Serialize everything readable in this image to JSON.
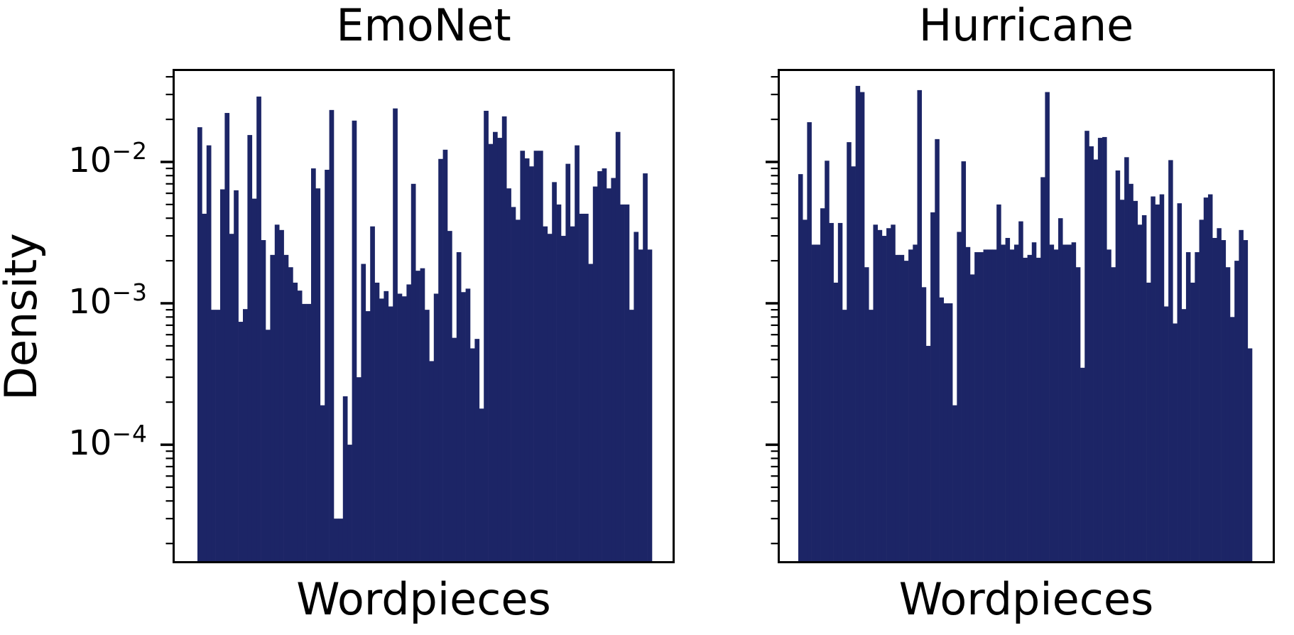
{
  "page": {
    "background": "#ffffff",
    "text_color": "#000000"
  },
  "chart_data": [
    {
      "type": "bar",
      "title": "EmoNet",
      "xlabel": "Wordpieces",
      "ylabel": "Density",
      "yscale": "log",
      "grid": false,
      "legend": "none",
      "bar_color": "#1c2566",
      "axis_color": "#000000",
      "ylim": [
        1.45e-05,
        0.0455
      ],
      "ytick_values": [
        0.01,
        0.001,
        0.0001
      ],
      "ytick_labels": [
        {
          "base": "10",
          "exp": "−2",
          "value": 0.01
        },
        {
          "base": "10",
          "exp": "−3",
          "value": 0.001
        },
        {
          "base": "10",
          "exp": "−4",
          "value": 0.0001
        }
      ],
      "show_ytick_labels": true,
      "values": [
        0.0176,
        0.0043,
        0.0131,
        0.0009,
        0.0009,
        0.0064,
        0.0222,
        0.0031,
        0.0063,
        0.00074,
        0.00091,
        0.0155,
        0.0055,
        0.029,
        0.0028,
        0.00065,
        0.0022,
        0.0036,
        0.0033,
        0.0022,
        0.0018,
        0.0014,
        0.00123,
        0.00099,
        0.00099,
        0.009,
        0.0065,
        0.00019,
        0.0088,
        0.0233,
        3e-05,
        3e-05,
        0.00022,
        0.0001,
        0.0196,
        0.0003,
        0.0019,
        0.00088,
        0.0035,
        0.0014,
        0.00108,
        0.00122,
        0.00095,
        0.0239,
        0.00117,
        0.00112,
        0.00136,
        0.007,
        0.0017,
        0.00177,
        0.0009,
        0.00039,
        0.00117,
        0.0105,
        0.0122,
        0.00325,
        0.00057,
        0.0023,
        0.0012,
        0.00127,
        0.00048,
        0.00056,
        0.00018,
        0.023,
        0.0134,
        0.0163,
        0.0148,
        0.021,
        0.0065,
        0.0048,
        0.0039,
        0.012,
        0.0106,
        0.0093,
        0.012,
        0.012,
        0.0035,
        0.0031,
        0.0072,
        0.005,
        0.003,
        0.0097,
        0.0035,
        0.0131,
        0.0043,
        0.0043,
        0.0019,
        0.0067,
        0.0086,
        0.009,
        0.0065,
        0.0077,
        0.0163,
        0.005,
        0.005,
        0.0009,
        0.0032,
        0.0024,
        0.0083,
        0.0024
      ]
    },
    {
      "type": "bar",
      "title": "Hurricane",
      "xlabel": "Wordpieces",
      "ylabel": "",
      "yscale": "log",
      "grid": false,
      "legend": "none",
      "bar_color": "#1c2566",
      "axis_color": "#000000",
      "ylim": [
        1.45e-05,
        0.0455
      ],
      "ytick_values": [
        0.01,
        0.001,
        0.0001
      ],
      "ytick_labels": [],
      "show_ytick_labels": false,
      "values": [
        0.0082,
        0.0039,
        0.0191,
        0.0026,
        0.0026,
        0.0047,
        0.0102,
        0.0037,
        0.0014,
        0.0037,
        0.0009,
        0.0138,
        0.0093,
        0.0345,
        0.0312,
        0.0018,
        0.0009,
        0.0036,
        0.0033,
        0.003,
        0.0034,
        0.0036,
        0.0022,
        0.0022,
        0.002,
        0.0024,
        0.0026,
        0.0322,
        0.0013,
        0.0005,
        0.0044,
        0.0145,
        0.0011,
        0.001,
        0.001,
        0.00019,
        0.0032,
        0.0101,
        0.0025,
        0.0016,
        0.0023,
        0.0023,
        0.0024,
        0.0024,
        0.0024,
        0.005,
        0.0026,
        0.0029,
        0.0024,
        0.0026,
        0.0038,
        0.0021,
        0.0022,
        0.0027,
        0.0021,
        0.0078,
        0.0312,
        0.0026,
        0.0024,
        0.004,
        0.0026,
        0.0026,
        0.0027,
        0.0018,
        0.00035,
        0.0166,
        0.0129,
        0.0104,
        0.0148,
        0.015,
        0.0024,
        0.0018,
        0.0087,
        0.0054,
        0.0108,
        0.007,
        0.0053,
        0.0036,
        0.0042,
        0.0014,
        0.0057,
        0.005,
        0.0059,
        0.00095,
        0.0103,
        0.00072,
        0.0051,
        0.00091,
        0.0023,
        0.0014,
        0.0023,
        0.0039,
        0.0056,
        0.0059,
        0.0029,
        0.0034,
        0.0028,
        0.0018,
        0.0008,
        0.002,
        0.0033,
        0.0028,
        0.00048
      ]
    }
  ]
}
